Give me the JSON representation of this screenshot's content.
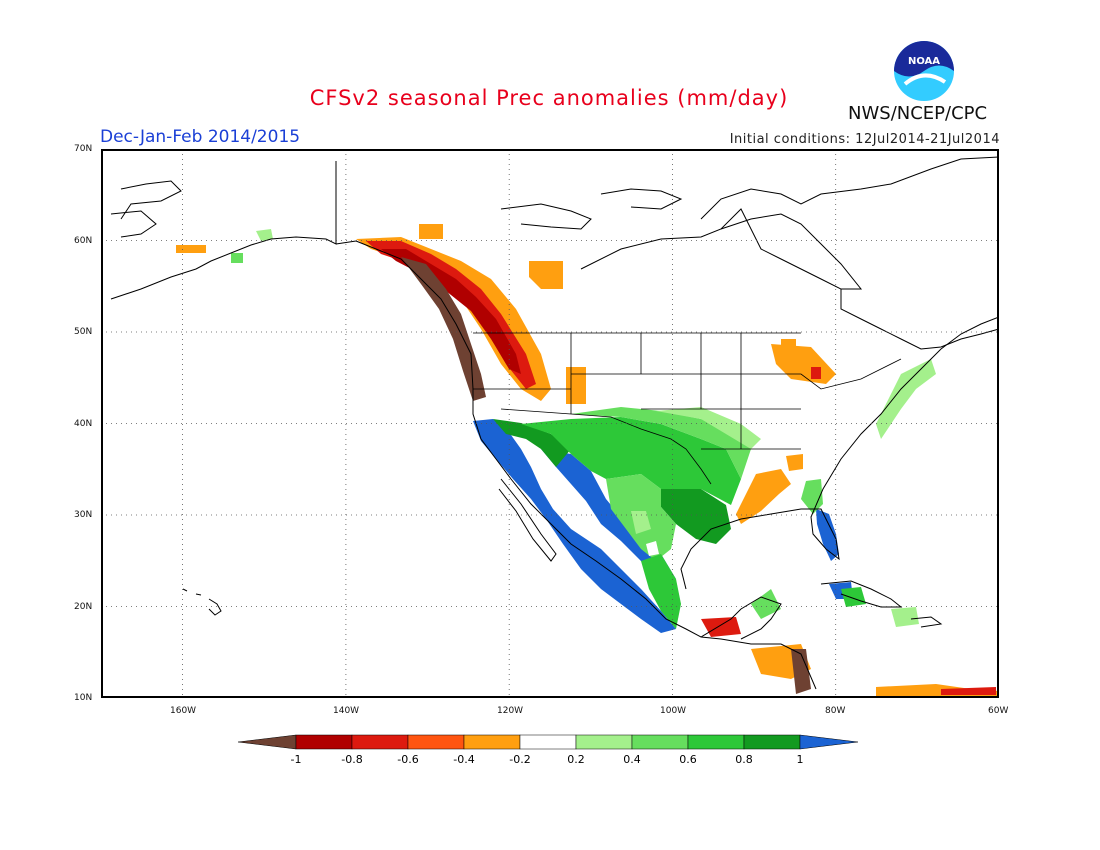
{
  "header": {
    "title": "CFSv2 seasonal Prec anomalies (mm/day)",
    "season": "Dec-Jan-Feb 2014/2015",
    "initial_conditions": "Initial conditions: 12Jul2014-21Jul2014",
    "agency": "NWS/NCEP/CPC",
    "logo_text": "NOAA"
  },
  "map": {
    "lat_labels": [
      "70N",
      "60N",
      "50N",
      "40N",
      "30N",
      "20N",
      "10N"
    ],
    "lon_labels": [
      "160W",
      "140W",
      "120W",
      "100W",
      "80W",
      "60W"
    ],
    "extent": {
      "lon_min": -170,
      "lon_max": -60,
      "lat_min": 10,
      "lat_max": 70
    }
  },
  "colorbar": {
    "tick_labels": [
      "-1",
      "-0.8",
      "-0.6",
      "-0.4",
      "-0.2",
      "0.2",
      "0.4",
      "0.6",
      "0.8",
      "1"
    ],
    "colors": [
      "#6e4132",
      "#b00000",
      "#dd1a0f",
      "#ff5510",
      "#ff9f10",
      "#ffffff",
      "#a4f08c",
      "#66de5e",
      "#2dc838",
      "#129a20",
      "#1b63d3"
    ],
    "units": "mm/day"
  }
}
